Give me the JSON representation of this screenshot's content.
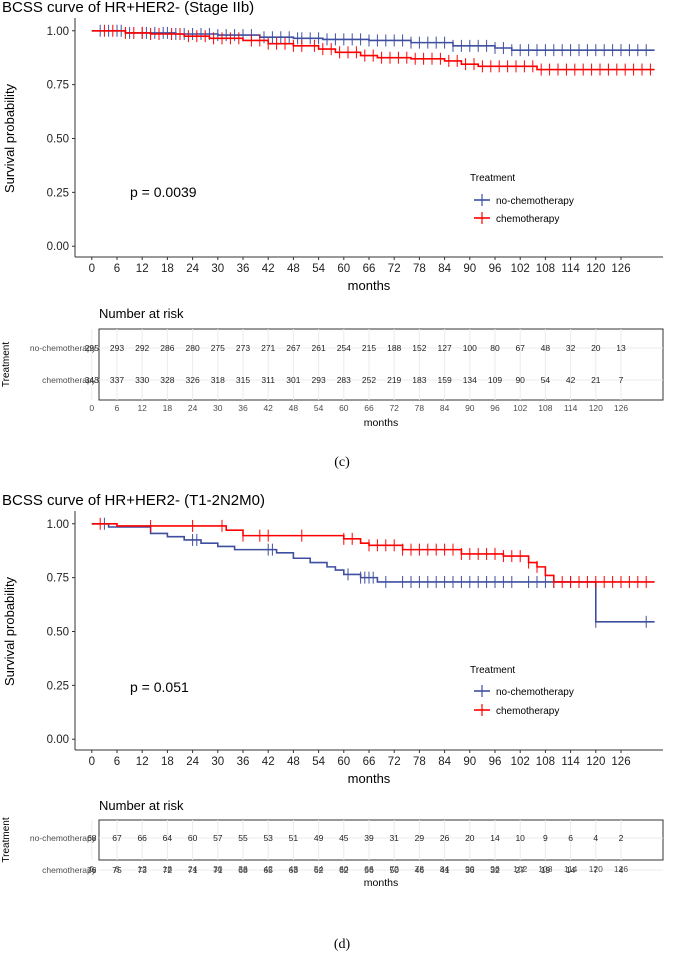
{
  "colors": {
    "nochemo": "#3F4FA0",
    "chemo": "#FF0000",
    "axis": "#333333",
    "tick": "#4D4D4D",
    "grid": "#EBEBEB"
  },
  "figure_labels": [
    "(c)",
    "(d)"
  ],
  "chart_data": [
    {
      "type": "line",
      "title": "BCSS curve of HR+HER2- (Stage IIb)",
      "xlabel": "months",
      "ylabel": "Survival probability",
      "xlim": [
        -4,
        136
      ],
      "ylim": [
        -0.05,
        1.05
      ],
      "xticks": [
        0,
        6,
        12,
        18,
        24,
        30,
        36,
        42,
        48,
        54,
        60,
        66,
        72,
        78,
        84,
        90,
        96,
        102,
        108,
        114,
        120,
        126
      ],
      "yticks": [
        0.0,
        0.25,
        0.5,
        0.75,
        1.0
      ],
      "ytick_labels": [
        "0.00",
        "0.25",
        "0.50",
        "0.75",
        "1.00"
      ],
      "pvalue": "p = 0.0039",
      "legend": {
        "title": "Treatment",
        "position": "right",
        "entries": [
          "no-chemotherapy",
          "chemotherapy"
        ]
      },
      "series": [
        {
          "name": "no-chemotherapy",
          "color_key": "nochemo",
          "steps": [
            [
              0,
              1.0
            ],
            [
              8,
              0.99
            ],
            [
              20,
              0.985
            ],
            [
              30,
              0.98
            ],
            [
              40,
              0.97
            ],
            [
              48,
              0.965
            ],
            [
              55,
              0.96
            ],
            [
              66,
              0.955
            ],
            [
              76,
              0.945
            ],
            [
              86,
              0.93
            ],
            [
              96,
              0.92
            ],
            [
              100,
              0.91
            ],
            [
              134,
              0.91
            ]
          ],
          "censors": [
            2,
            4,
            6,
            7,
            9,
            12,
            13,
            15,
            17,
            18,
            20,
            22,
            24,
            26,
            28,
            30,
            32,
            34,
            36,
            38,
            41,
            43,
            45,
            47,
            49,
            50,
            52,
            54,
            56,
            58,
            60,
            62,
            64,
            66,
            68,
            70,
            72,
            74,
            76,
            78,
            80,
            82,
            84,
            86,
            88,
            90,
            92,
            94,
            96,
            98,
            100,
            102,
            104,
            106,
            108,
            110,
            112,
            114,
            116,
            118,
            120,
            122,
            124,
            126,
            128,
            130,
            132
          ]
        },
        {
          "name": "chemotherapy",
          "color_key": "chemo",
          "steps": [
            [
              0,
              1.0
            ],
            [
              8,
              0.99
            ],
            [
              14,
              0.985
            ],
            [
              22,
              0.975
            ],
            [
              28,
              0.965
            ],
            [
              36,
              0.955
            ],
            [
              42,
              0.94
            ],
            [
              48,
              0.93
            ],
            [
              54,
              0.915
            ],
            [
              58,
              0.9
            ],
            [
              64,
              0.885
            ],
            [
              68,
              0.875
            ],
            [
              76,
              0.87
            ],
            [
              84,
              0.86
            ],
            [
              88,
              0.845
            ],
            [
              92,
              0.835
            ],
            [
              106,
              0.82
            ],
            [
              134,
              0.82
            ]
          ],
          "censors": [
            3,
            5,
            8,
            10,
            12,
            14,
            16,
            19,
            21,
            23,
            25,
            27,
            29,
            31,
            33,
            35,
            38,
            40,
            42,
            44,
            46,
            48,
            50,
            53,
            55,
            57,
            59,
            61,
            63,
            65,
            67,
            69,
            71,
            73,
            75,
            77,
            79,
            81,
            83,
            85,
            87,
            89,
            91,
            93,
            95,
            97,
            99,
            101,
            103,
            105,
            107,
            109,
            111,
            113,
            115,
            117,
            119,
            121,
            123,
            125,
            127,
            129,
            131,
            133
          ]
        }
      ],
      "risk_table": {
        "title": "Number at risk",
        "ylabel": "Treatment",
        "xlabel": "months",
        "rows": [
          {
            "label": "no-chemotherapy",
            "values": [
              295,
              293,
              292,
              286,
              280,
              275,
              273,
              271,
              267,
              261,
              254,
              215,
              188,
              152,
              127,
              100,
              80,
              67,
              48,
              32,
              20,
              13
            ]
          },
          {
            "label": "chemotherapy",
            "values": [
              343,
              337,
              330,
              328,
              326,
              318,
              315,
              311,
              301,
              293,
              283,
              252,
              219,
              183,
              159,
              134,
              109,
              90,
              54,
              42,
              21,
              7
            ]
          }
        ]
      }
    },
    {
      "type": "line",
      "title": "BCSS curve of HR+HER2- (T1-2N2M0)",
      "xlabel": "months",
      "ylabel": "Survival probability",
      "xlim": [
        -4,
        136
      ],
      "ylim": [
        -0.05,
        1.05
      ],
      "xticks": [
        0,
        6,
        12,
        18,
        24,
        30,
        36,
        42,
        48,
        54,
        60,
        66,
        72,
        78,
        84,
        90,
        96,
        102,
        108,
        114,
        120,
        126
      ],
      "yticks": [
        0.0,
        0.25,
        0.5,
        0.75,
        1.0
      ],
      "ytick_labels": [
        "0.00",
        "0.25",
        "0.50",
        "0.75",
        "1.00"
      ],
      "pvalue": "p = 0.051",
      "legend": {
        "title": "Treatment",
        "position": "right",
        "entries": [
          "no-chemotherapy",
          "chemotherapy"
        ]
      },
      "series": [
        {
          "name": "no-chemotherapy",
          "color_key": "nochemo",
          "steps": [
            [
              0,
              1.0
            ],
            [
              4,
              0.985
            ],
            [
              14,
              0.955
            ],
            [
              18,
              0.94
            ],
            [
              22,
              0.925
            ],
            [
              26,
              0.91
            ],
            [
              30,
              0.895
            ],
            [
              34,
              0.88
            ],
            [
              44,
              0.865
            ],
            [
              48,
              0.84
            ],
            [
              52,
              0.82
            ],
            [
              56,
              0.8
            ],
            [
              58,
              0.785
            ],
            [
              60,
              0.765
            ],
            [
              64,
              0.75
            ],
            [
              68,
              0.73
            ],
            [
              120,
              0.545
            ],
            [
              134,
              0.545
            ]
          ],
          "censors": [
            3,
            24,
            25,
            42,
            43,
            61,
            64,
            65,
            66,
            67,
            70,
            74,
            76,
            78,
            80,
            82,
            84,
            86,
            88,
            90,
            92,
            94,
            96,
            98,
            100,
            104,
            106,
            108,
            110,
            114,
            120,
            132
          ]
        },
        {
          "name": "chemotherapy",
          "color_key": "chemo",
          "steps": [
            [
              0,
              1.0
            ],
            [
              6,
              0.99
            ],
            [
              32,
              0.97
            ],
            [
              36,
              0.945
            ],
            [
              60,
              0.93
            ],
            [
              64,
              0.91
            ],
            [
              66,
              0.9
            ],
            [
              74,
              0.88
            ],
            [
              88,
              0.86
            ],
            [
              98,
              0.85
            ],
            [
              104,
              0.82
            ],
            [
              106,
              0.8
            ],
            [
              108,
              0.76
            ],
            [
              110,
              0.73
            ],
            [
              134,
              0.73
            ]
          ],
          "censors": [
            2,
            14,
            24,
            31,
            36,
            40,
            42,
            50,
            60,
            62,
            66,
            68,
            70,
            72,
            74,
            76,
            78,
            80,
            82,
            84,
            86,
            88,
            90,
            92,
            94,
            96,
            98,
            100,
            102,
            104,
            106,
            110,
            112,
            114,
            116,
            118,
            120,
            122,
            124,
            126,
            128,
            130,
            132
          ]
        }
      ],
      "risk_table": {
        "title": "Number at risk",
        "ylabel": "Treatment",
        "xlabel": "months",
        "rows": [
          {
            "label": "no-chemotherapy",
            "values": [
              68,
              67,
              66,
              64,
              60,
              57,
              55,
              53,
              51,
              49,
              45,
              39,
              31,
              29,
              26,
              20,
              14,
              10,
              9,
              6,
              4,
              2
            ]
          },
          {
            "label": "chemotherapy",
            "values": [
              76,
              75,
              73,
              72,
              71,
              71,
              68,
              65,
              63,
              62,
              62,
              56,
              50,
              46,
              41,
              36,
              32,
              27,
              19,
              14,
              7,
              4
            ]
          }
        ]
      }
    }
  ]
}
